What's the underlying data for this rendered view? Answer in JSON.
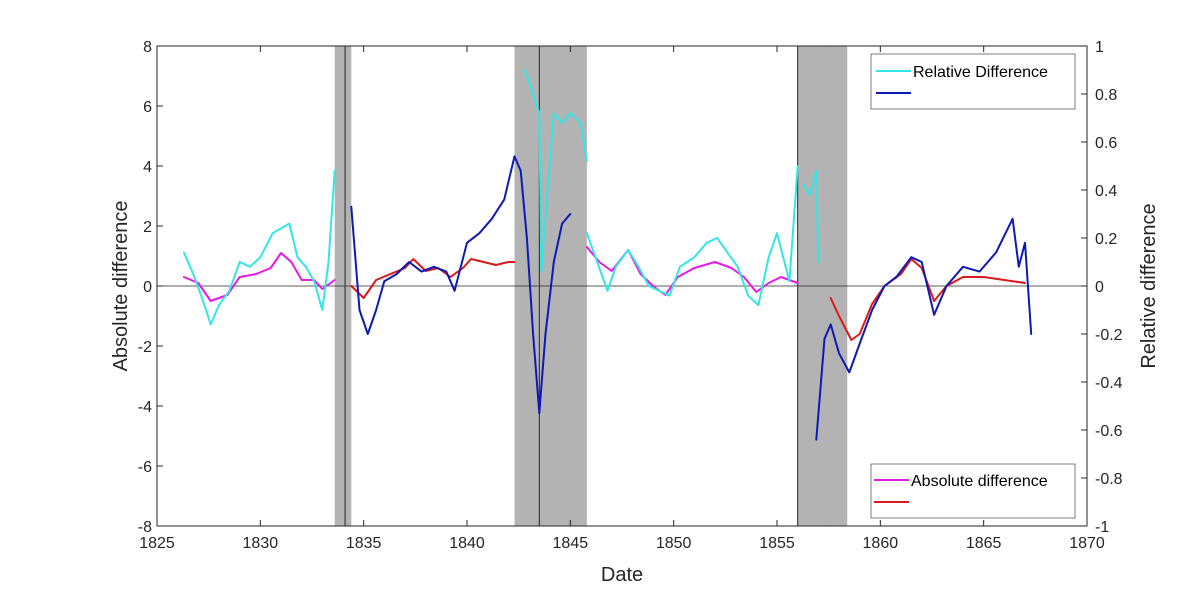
{
  "chart_data": {
    "type": "line",
    "title": "",
    "xlabel": "Date",
    "ylabel_left": "Absolute difference",
    "ylabel_right": "Relative difference",
    "xlim": [
      1825,
      1870
    ],
    "ylim_left": [
      -8,
      8
    ],
    "ylim_right": [
      -1,
      1
    ],
    "xticks": [
      1825,
      1830,
      1835,
      1840,
      1845,
      1850,
      1855,
      1860,
      1865,
      1870
    ],
    "yticks_left": [
      -8,
      -6,
      -4,
      -2,
      0,
      2,
      4,
      6,
      8
    ],
    "yticks_right": [
      -1,
      -0.8,
      -0.6,
      -0.4,
      -0.2,
      0,
      0.2,
      0.4,
      0.6,
      0.8,
      1
    ],
    "grid": false,
    "colors": {
      "shade": "#b3b3b3",
      "cyan": "#33e6e6",
      "blue": "#0d1ab3",
      "magenta": "#e61ae6",
      "red": "#d91a1a",
      "axis": "#262626"
    },
    "shaded_periods": [
      [
        1833.6,
        1834.4
      ],
      [
        1842.8,
        1845.8
      ],
      [
        1842.3,
        1845.0
      ],
      [
        1856.3,
        1858.4
      ],
      [
        1856.0,
        1857.6
      ]
    ],
    "vertical_lines": [
      1834.1,
      1843.5,
      1856.0
    ],
    "legends": [
      {
        "position": "top-right",
        "entries": [
          {
            "label": "Relative Difference",
            "color": "#33e6e6"
          },
          {
            "label": "",
            "color": "#0d1ab3"
          }
        ]
      },
      {
        "position": "bottom-right",
        "entries": [
          {
            "label": "Absolute difference",
            "color": "#e61ae6"
          },
          {
            "label": "",
            "color": "#d91a1a"
          }
        ]
      }
    ],
    "series": [
      {
        "color": "#e61ae6",
        "axis": "left",
        "segments": [
          [
            [
              1826.3,
              0.3
            ],
            [
              1827.0,
              0.1
            ],
            [
              1827.6,
              -0.5
            ],
            [
              1828.4,
              -0.3
            ],
            [
              1829.0,
              0.3
            ],
            [
              1829.8,
              0.4
            ],
            [
              1830.5,
              0.6
            ],
            [
              1831.0,
              1.1
            ],
            [
              1831.5,
              0.8
            ],
            [
              1832.0,
              0.2
            ],
            [
              1832.6,
              0.2
            ],
            [
              1833.0,
              -0.1
            ],
            [
              1833.6,
              0.2
            ]
          ],
          [
            [
              1845.8,
              1.3
            ],
            [
              1846.4,
              0.8
            ],
            [
              1847.0,
              0.5
            ],
            [
              1847.8,
              1.2
            ],
            [
              1848.4,
              0.4
            ],
            [
              1849.0,
              0.0
            ],
            [
              1849.6,
              -0.3
            ],
            [
              1850.2,
              0.3
            ],
            [
              1851.0,
              0.6
            ],
            [
              1852.0,
              0.8
            ],
            [
              1852.8,
              0.6
            ],
            [
              1853.4,
              0.3
            ],
            [
              1854.0,
              -0.2
            ],
            [
              1854.6,
              0.1
            ],
            [
              1855.2,
              0.3
            ],
            [
              1856.0,
              0.1
            ]
          ]
        ]
      },
      {
        "color": "#d91a1a",
        "axis": "left",
        "segments": [
          [
            [
              1834.4,
              0.0
            ],
            [
              1835.0,
              -0.4
            ],
            [
              1835.6,
              0.2
            ],
            [
              1836.3,
              0.4
            ],
            [
              1837.0,
              0.6
            ],
            [
              1837.4,
              0.9
            ],
            [
              1838.0,
              0.5
            ],
            [
              1838.6,
              0.6
            ],
            [
              1839.2,
              0.3
            ],
            [
              1839.8,
              0.6
            ],
            [
              1840.2,
              0.9
            ],
            [
              1840.8,
              0.8
            ],
            [
              1841.4,
              0.7
            ],
            [
              1842.0,
              0.8
            ],
            [
              1842.3,
              0.8
            ]
          ],
          [
            [
              1857.6,
              -0.4
            ],
            [
              1858.0,
              -1.0
            ],
            [
              1858.6,
              -1.8
            ],
            [
              1859.0,
              -1.6
            ],
            [
              1859.6,
              -0.6
            ],
            [
              1860.2,
              0.0
            ],
            [
              1861.0,
              0.4
            ],
            [
              1861.5,
              0.9
            ],
            [
              1862.0,
              0.6
            ],
            [
              1862.6,
              -0.5
            ],
            [
              1863.2,
              0.0
            ],
            [
              1864.0,
              0.3
            ],
            [
              1865.0,
              0.3
            ],
            [
              1866.0,
              0.2
            ],
            [
              1867.0,
              0.1
            ]
          ]
        ]
      },
      {
        "color": "#33e6e6",
        "axis": "right",
        "segments": [
          [
            [
              1826.3,
              0.14
            ],
            [
              1826.8,
              0.04
            ],
            [
              1827.3,
              -0.08
            ],
            [
              1827.6,
              -0.16
            ],
            [
              1828.0,
              -0.08
            ],
            [
              1828.5,
              -0.02
            ],
            [
              1829.0,
              0.1
            ],
            [
              1829.5,
              0.08
            ],
            [
              1830.0,
              0.12
            ],
            [
              1830.6,
              0.22
            ],
            [
              1831.0,
              0.24
            ],
            [
              1831.4,
              0.26
            ],
            [
              1831.8,
              0.12
            ],
            [
              1832.2,
              0.08
            ],
            [
              1832.6,
              0.02
            ],
            [
              1833.0,
              -0.1
            ],
            [
              1833.3,
              0.1
            ],
            [
              1833.6,
              0.48
            ]
          ],
          [
            [
              1842.8,
              0.9
            ],
            [
              1843.2,
              0.8
            ],
            [
              1843.5,
              0.72
            ],
            [
              1843.6,
              0.06
            ],
            [
              1843.9,
              0.4
            ],
            [
              1844.2,
              0.72
            ],
            [
              1844.6,
              0.68
            ],
            [
              1845.0,
              0.72
            ],
            [
              1845.5,
              0.68
            ],
            [
              1845.8,
              0.52
            ]
          ],
          [
            [
              1845.8,
              0.22
            ],
            [
              1846.3,
              0.1
            ],
            [
              1846.8,
              -0.02
            ],
            [
              1847.2,
              0.08
            ],
            [
              1847.8,
              0.15
            ],
            [
              1848.3,
              0.08
            ],
            [
              1848.8,
              0.0
            ],
            [
              1849.3,
              -0.02
            ],
            [
              1849.8,
              -0.04
            ],
            [
              1850.3,
              0.08
            ],
            [
              1851.0,
              0.12
            ],
            [
              1851.6,
              0.18
            ],
            [
              1852.1,
              0.2
            ],
            [
              1852.6,
              0.14
            ],
            [
              1853.1,
              0.08
            ],
            [
              1853.6,
              -0.04
            ],
            [
              1854.1,
              -0.08
            ],
            [
              1854.6,
              0.12
            ],
            [
              1855.0,
              0.22
            ],
            [
              1855.6,
              0.02
            ],
            [
              1856.0,
              0.5
            ]
          ],
          [
            [
              1856.3,
              0.42
            ],
            [
              1856.6,
              0.38
            ],
            [
              1856.9,
              0.48
            ],
            [
              1857.0,
              0.1
            ]
          ]
        ]
      },
      {
        "color": "#0d1ab3",
        "axis": "right",
        "segments": [
          [
            [
              1834.4,
              0.33
            ],
            [
              1834.8,
              -0.1
            ],
            [
              1835.2,
              -0.2
            ],
            [
              1835.6,
              -0.1
            ],
            [
              1836.0,
              0.02
            ],
            [
              1836.6,
              0.05
            ],
            [
              1837.2,
              0.1
            ],
            [
              1837.8,
              0.06
            ],
            [
              1838.4,
              0.08
            ],
            [
              1839.0,
              0.06
            ],
            [
              1839.4,
              -0.02
            ],
            [
              1840.0,
              0.18
            ],
            [
              1840.6,
              0.22
            ],
            [
              1841.2,
              0.28
            ],
            [
              1841.8,
              0.36
            ],
            [
              1842.3,
              0.54
            ]
          ],
          [
            [
              1842.3,
              0.54
            ],
            [
              1842.6,
              0.48
            ],
            [
              1842.9,
              0.2
            ],
            [
              1843.2,
              -0.2
            ],
            [
              1843.5,
              -0.53
            ],
            [
              1843.8,
              -0.2
            ],
            [
              1844.2,
              0.1
            ],
            [
              1844.6,
              0.26
            ],
            [
              1845.0,
              0.3
            ]
          ],
          [
            [
              1856.9,
              -0.64
            ],
            [
              1857.3,
              -0.22
            ],
            [
              1857.6,
              -0.16
            ],
            [
              1858.0,
              -0.28
            ],
            [
              1858.5,
              -0.36
            ],
            [
              1859.0,
              -0.24
            ],
            [
              1859.6,
              -0.1
            ],
            [
              1860.2,
              0.0
            ],
            [
              1860.8,
              0.04
            ],
            [
              1861.5,
              0.12
            ],
            [
              1862.0,
              0.1
            ],
            [
              1862.6,
              -0.12
            ],
            [
              1863.2,
              0.0
            ],
            [
              1864.0,
              0.08
            ],
            [
              1864.8,
              0.06
            ],
            [
              1865.6,
              0.14
            ],
            [
              1866.4,
              0.28
            ],
            [
              1866.7,
              0.08
            ],
            [
              1867.0,
              0.18
            ],
            [
              1867.3,
              -0.2
            ]
          ]
        ]
      }
    ]
  }
}
